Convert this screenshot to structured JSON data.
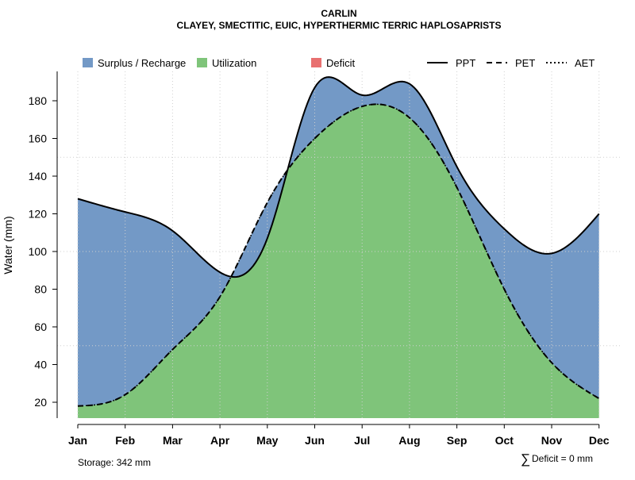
{
  "chart_data": {
    "type": "area",
    "title": "CARLIN",
    "subtitle": "CLAYEY, SMECTITIC, EUIC, HYPERTHERMIC TERRIC HAPLOSAPRISTS",
    "xlabel": "",
    "ylabel": "Water (mm)",
    "categories": [
      "Jan",
      "Feb",
      "Mar",
      "Apr",
      "May",
      "Jun",
      "Jul",
      "Aug",
      "Sep",
      "Oct",
      "Nov",
      "Dec"
    ],
    "yticks": [
      20,
      40,
      60,
      80,
      100,
      120,
      140,
      160,
      180
    ],
    "ylim": [
      12,
      194
    ],
    "grid": true,
    "legend_position": "top",
    "series": [
      {
        "name": "PPT",
        "style": "solid",
        "values": [
          128,
          121,
          111,
          89,
          107,
          187,
          183,
          189,
          145,
          112,
          99,
          120
        ]
      },
      {
        "name": "PET",
        "style": "dashed",
        "values": [
          18,
          24,
          48,
          76,
          126,
          160,
          177,
          171,
          134,
          80,
          41,
          22
        ]
      },
      {
        "name": "AET",
        "style": "dotted",
        "values": [
          18,
          24,
          48,
          76,
          126,
          160,
          177,
          171,
          134,
          80,
          41,
          22
        ]
      }
    ],
    "areas": [
      {
        "name": "Surplus / Recharge",
        "color": "#7399c6"
      },
      {
        "name": "Utilization",
        "color": "#7fc47a"
      },
      {
        "name": "Deficit",
        "color": "#e87070"
      }
    ],
    "annotations": {
      "storage": "Storage: 342 mm",
      "deficit_symbol": "∑",
      "deficit": "Deficit = 0 mm"
    }
  }
}
